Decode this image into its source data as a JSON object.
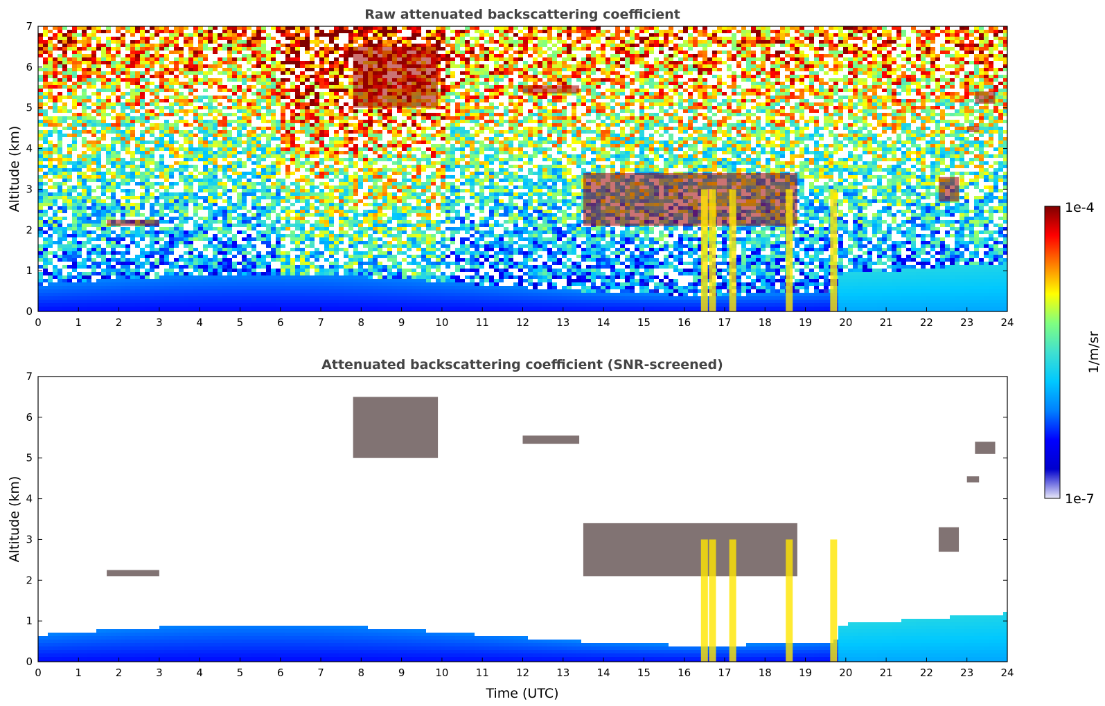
{
  "figure": {
    "colorbar": {
      "label": "1/m/sr",
      "max_label": "1e-4",
      "min_label": "1e-7",
      "scale": "log",
      "colormap": "jet",
      "colors": [
        "#e8e8f8",
        "#0000cc",
        "#0000ff",
        "#0080ff",
        "#00c8ff",
        "#40e0d0",
        "#80ff80",
        "#ffff00",
        "#ff8000",
        "#ff0000",
        "#800000"
      ]
    }
  },
  "chart_data": [
    {
      "type": "heatmap",
      "title": "Raw attenuated backscattering coefficient",
      "xlabel": "",
      "ylabel": "Altitude (km)",
      "xlim": [
        0,
        24
      ],
      "ylim": [
        0,
        7
      ],
      "x_ticks": [
        "0",
        "1",
        "2",
        "3",
        "4",
        "5",
        "6",
        "7",
        "8",
        "9",
        "10",
        "11",
        "12",
        "13",
        "14",
        "15",
        "16",
        "17",
        "18",
        "19",
        "20",
        "21",
        "22",
        "23",
        "24"
      ],
      "y_ticks": [
        "0",
        "1",
        "2",
        "3",
        "4",
        "5",
        "6",
        "7"
      ],
      "grid": false,
      "features": {
        "cloud_layers": [
          {
            "t": [
              1.7,
              3.0
            ],
            "alt": [
              2.1,
              2.25
            ]
          },
          {
            "t": [
              7.8,
              9.9
            ],
            "alt": [
              5.0,
              6.5
            ]
          },
          {
            "t": [
              12.0,
              13.4
            ],
            "alt": [
              5.35,
              5.55
            ]
          },
          {
            "t": [
              13.5,
              18.8
            ],
            "alt": [
              2.1,
              3.4
            ]
          },
          {
            "t": [
              23.0,
              23.3
            ],
            "alt": [
              4.4,
              4.55
            ]
          },
          {
            "t": [
              23.2,
              23.7
            ],
            "alt": [
              5.1,
              5.4
            ]
          },
          {
            "t": [
              22.3,
              22.8
            ],
            "alt": [
              2.7,
              3.3
            ]
          }
        ],
        "precipitation_columns": [
          16.5,
          16.7,
          17.2,
          18.6,
          19.7
        ],
        "boundary_layer_top_km": [
          0.55,
          1.1
        ]
      }
    },
    {
      "type": "heatmap",
      "title": "Attenuated backscattering coefficient (SNR-screened)",
      "xlabel": "Time (UTC)",
      "ylabel": "Altitude (km)",
      "xlim": [
        0,
        24
      ],
      "ylim": [
        0,
        7
      ],
      "x_ticks": [
        "0",
        "1",
        "2",
        "3",
        "4",
        "5",
        "6",
        "7",
        "8",
        "9",
        "10",
        "11",
        "12",
        "13",
        "14",
        "15",
        "16",
        "17",
        "18",
        "19",
        "20",
        "21",
        "22",
        "23",
        "24"
      ],
      "y_ticks": [
        "0",
        "1",
        "2",
        "3",
        "4",
        "5",
        "6",
        "7"
      ],
      "grid": false,
      "features": {
        "screened": true
      }
    }
  ]
}
